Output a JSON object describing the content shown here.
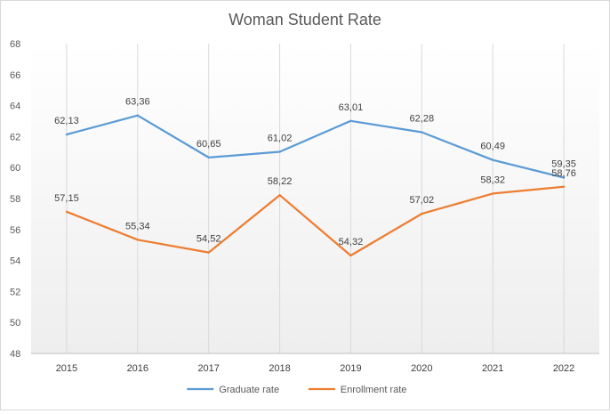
{
  "chart_data": {
    "type": "line",
    "title": "Woman Student Rate",
    "xlabel": "",
    "ylabel": "",
    "categories": [
      "2015",
      "2016",
      "2017",
      "2018",
      "2019",
      "2020",
      "2021",
      "2022"
    ],
    "ylim": [
      48,
      68
    ],
    "yticks": [
      "48",
      "50",
      "52",
      "54",
      "56",
      "58",
      "60",
      "62",
      "64",
      "66",
      "68"
    ],
    "grid": "vertical",
    "legend_position": "bottom",
    "series": [
      {
        "name": "Graduate rate",
        "color": "#5b9bd5",
        "values": [
          62.13,
          63.36,
          60.65,
          61.02,
          63.01,
          62.28,
          60.49,
          59.35
        ],
        "labels": [
          "62,13",
          "63,36",
          "60,65",
          "61,02",
          "63,01",
          "62,28",
          "60,49",
          "59,35"
        ]
      },
      {
        "name": "Enrollment rate",
        "color": "#ed7d31",
        "values": [
          57.15,
          55.34,
          54.52,
          58.22,
          54.32,
          57.02,
          58.32,
          58.76
        ],
        "labels": [
          "57,15",
          "55,34",
          "54,52",
          "58,22",
          "54,32",
          "57,02",
          "58,32",
          "58,76"
        ]
      }
    ]
  }
}
